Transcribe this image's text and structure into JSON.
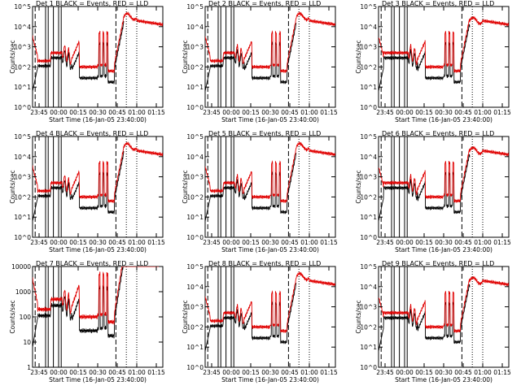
{
  "figure": {
    "background": "#ffffff",
    "colors": {
      "events": "#000000",
      "lld": "#e00000",
      "axes": "#000000"
    }
  },
  "chart_data": [
    {
      "panel": 1,
      "type": "line",
      "title": "Det 1",
      "legend_text": "BLACK = Events, RED = LLD",
      "ylabel": "Counts/sec",
      "xlabel": "Start Time (16-Jan-05 23:40:00)",
      "x_ticks": [
        "23:45",
        "00:00",
        "00:15",
        "00:30",
        "00:45",
        "01:00",
        "01:15"
      ],
      "y_ticks": [
        "10^0",
        "10^1",
        "10^2",
        "10^3",
        "10^4",
        "10^5"
      ],
      "ylim_log10": [
        0,
        5
      ],
      "xlim_min": [
        0,
        100
      ],
      "variant": 1
    },
    {
      "panel": 2,
      "type": "line",
      "title": "Det 2",
      "legend_text": "BLACK = Events, RED = LLD",
      "ylabel": "Counts/sec",
      "xlabel": "Start Time (16-Jan-05 23:40:00)",
      "x_ticks": [
        "23:45",
        "00:00",
        "00:15",
        "00:30",
        "00:45",
        "01:00",
        "01:15"
      ],
      "y_ticks": [
        "10^0",
        "10^1",
        "10^2",
        "10^3",
        "10^4",
        "10^5"
      ],
      "ylim_log10": [
        0,
        5
      ],
      "xlim_min": [
        0,
        100
      ],
      "variant": 2
    },
    {
      "panel": 3,
      "type": "line",
      "title": "Det 3",
      "legend_text": "BLACK = Events, RED = LLD",
      "ylabel": "Counts/sec",
      "xlabel": "Start Time (16-Jan-05 23:40:00)",
      "x_ticks": [
        "23:45",
        "00:00",
        "00:15",
        "00:30",
        "00:45",
        "01:00",
        "01:15"
      ],
      "y_ticks": [
        "10^0",
        "10^1",
        "10^2",
        "10^3",
        "10^4",
        "10^5"
      ],
      "ylim_log10": [
        0,
        5
      ],
      "xlim_min": [
        0,
        100
      ],
      "variant": 3
    },
    {
      "panel": 4,
      "type": "line",
      "title": "Det 4",
      "legend_text": "BLACK = Events, RED = LLD",
      "ylabel": "Counts/sec",
      "xlabel": "Start Time (16-Jan-05 23:40:00)",
      "x_ticks": [
        "23:45",
        "00:00",
        "00:15",
        "00:30",
        "00:45",
        "01:00",
        "01:15"
      ],
      "y_ticks": [
        "10^0",
        "10^1",
        "10^2",
        "10^3",
        "10^4",
        "10^5"
      ],
      "ylim_log10": [
        0,
        5
      ],
      "xlim_min": [
        0,
        100
      ],
      "variant": 1
    },
    {
      "panel": 5,
      "type": "line",
      "title": "Det 5",
      "legend_text": "BLACK = Events, RED = LLD",
      "ylabel": "Counts/sec",
      "xlabel": "Start Time (16-Jan-05 23:40:00)",
      "x_ticks": [
        "23:45",
        "00:00",
        "00:15",
        "00:30",
        "00:45",
        "01:00",
        "01:15"
      ],
      "y_ticks": [
        "10^0",
        "10^1",
        "10^2",
        "10^3",
        "10^4",
        "10^5"
      ],
      "ylim_log10": [
        0,
        5
      ],
      "xlim_min": [
        0,
        100
      ],
      "variant": 2
    },
    {
      "panel": 6,
      "type": "line",
      "title": "Det 6",
      "legend_text": "BLACK = Events, RED = LLD",
      "ylabel": "Counts/sec",
      "xlabel": "Start Time (16-Jan-05 23:40:00)",
      "x_ticks": [
        "23:45",
        "00:00",
        "00:15",
        "00:30",
        "00:45",
        "01:00",
        "01:15"
      ],
      "y_ticks": [
        "10^0",
        "10^1",
        "10^2",
        "10^3",
        "10^4",
        "10^5"
      ],
      "ylim_log10": [
        0,
        5
      ],
      "xlim_min": [
        0,
        100
      ],
      "variant": 3
    },
    {
      "panel": 7,
      "type": "line",
      "title": "Det 7",
      "legend_text": "BLACK = Events, RED = LLD",
      "ylabel": "Counts/sec",
      "xlabel": "Start Time (16-Jan-05 23:40:00)",
      "x_ticks": [
        "23:45",
        "00:00",
        "00:15",
        "00:30",
        "00:45",
        "01:00",
        "01:15"
      ],
      "y_ticks": [
        "1",
        "10",
        "100",
        "1000",
        "10000"
      ],
      "ylim_log10": [
        0,
        4
      ],
      "xlim_min": [
        0,
        100
      ],
      "variant": 1
    },
    {
      "panel": 8,
      "type": "line",
      "title": "Det 8",
      "legend_text": "BLACK = Events, RED = LLD",
      "ylabel": "Counts/sec",
      "xlabel": "Start Time (16-Jan-05 23:40:00)",
      "x_ticks": [
        "23:45",
        "00:00",
        "00:15",
        "00:30",
        "00:45",
        "01:00",
        "01:15"
      ],
      "y_ticks": [
        "10^0",
        "10^1",
        "10^2",
        "10^3",
        "10^4",
        "10^5"
      ],
      "ylim_log10": [
        0,
        5
      ],
      "xlim_min": [
        0,
        100
      ],
      "variant": 2
    },
    {
      "panel": 9,
      "type": "line",
      "title": "Det 9",
      "legend_text": "BLACK = Events, RED = LLD",
      "ylabel": "Counts/sec",
      "xlabel": "Start Time (16-Jan-05 23:40:00)",
      "x_ticks": [
        "23:45",
        "00:00",
        "00:15",
        "00:30",
        "00:45",
        "01:00",
        "01:15"
      ],
      "y_ticks": [
        "10^0",
        "10^1",
        "10^2",
        "10^3",
        "10^4",
        "10^5"
      ],
      "ylim_log10": [
        0,
        5
      ],
      "xlim_min": [
        0,
        100
      ],
      "variant": 3
    }
  ]
}
